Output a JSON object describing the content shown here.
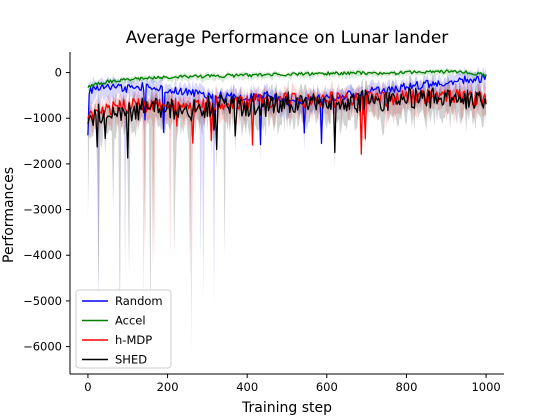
{
  "chart_data": {
    "type": "line",
    "title": "Average Performance on Lunar lander",
    "xlabel": "Training step",
    "ylabel": "Performances",
    "xlim": [
      -45,
      1045
    ],
    "ylim": [
      -6600,
      450
    ],
    "x_ticks": [
      0,
      200,
      400,
      600,
      800,
      1000
    ],
    "y_ticks": [
      0,
      -1000,
      -2000,
      -3000,
      -4000,
      -5000,
      -6000
    ],
    "x_tick_labels": [
      "0",
      "200",
      "400",
      "600",
      "800",
      "1000"
    ],
    "y_tick_labels": [
      "0",
      "−1000",
      "−2000",
      "−3000",
      "−4000",
      "−5000",
      "−6000"
    ],
    "grid": false,
    "legend_position": "bottom-left",
    "series": [
      {
        "name": "Random",
        "color": "#0000ff",
        "x": [
          0,
          50,
          100,
          150,
          200,
          250,
          300,
          350,
          400,
          450,
          500,
          550,
          600,
          650,
          700,
          750,
          800,
          850,
          900,
          950,
          1000
        ],
        "values": [
          -400,
          -300,
          -350,
          -280,
          -380,
          -420,
          -480,
          -520,
          -560,
          -500,
          -650,
          -600,
          -560,
          -500,
          -420,
          -380,
          -300,
          -260,
          -200,
          -150,
          -120
        ],
        "shaded_band": true
      },
      {
        "name": "Accel",
        "color": "#008000",
        "x": [
          0,
          50,
          100,
          150,
          200,
          250,
          300,
          350,
          400,
          450,
          500,
          550,
          600,
          650,
          700,
          750,
          800,
          850,
          900,
          950,
          1000
        ],
        "values": [
          -300,
          -200,
          -150,
          -120,
          -100,
          -90,
          -80,
          -70,
          -60,
          -50,
          -40,
          -30,
          -20,
          -10,
          -10,
          -20,
          0,
          10,
          20,
          0,
          -50
        ],
        "shaded_band": true
      },
      {
        "name": "h-MDP",
        "color": "#ff0000",
        "x": [
          0,
          50,
          100,
          150,
          200,
          250,
          300,
          350,
          400,
          450,
          500,
          550,
          600,
          650,
          700,
          750,
          800,
          850,
          900,
          950,
          1000
        ],
        "values": [
          -900,
          -800,
          -750,
          -700,
          -720,
          -680,
          -700,
          -650,
          -650,
          -620,
          -600,
          -650,
          -600,
          -580,
          -550,
          -600,
          -550,
          -520,
          -500,
          -550,
          -600
        ],
        "shaded_band": true
      },
      {
        "name": "SHED",
        "color": "#000000",
        "x": [
          0,
          50,
          100,
          150,
          200,
          250,
          300,
          350,
          400,
          450,
          500,
          550,
          600,
          650,
          700,
          750,
          800,
          850,
          900,
          950,
          1000
        ],
        "values": [
          -1000,
          -850,
          -900,
          -750,
          -800,
          -850,
          -750,
          -700,
          -750,
          -700,
          -650,
          -700,
          -600,
          -700,
          -600,
          -650,
          -550,
          -600,
          -500,
          -600,
          -550
        ],
        "shaded_band": true
      }
    ]
  }
}
